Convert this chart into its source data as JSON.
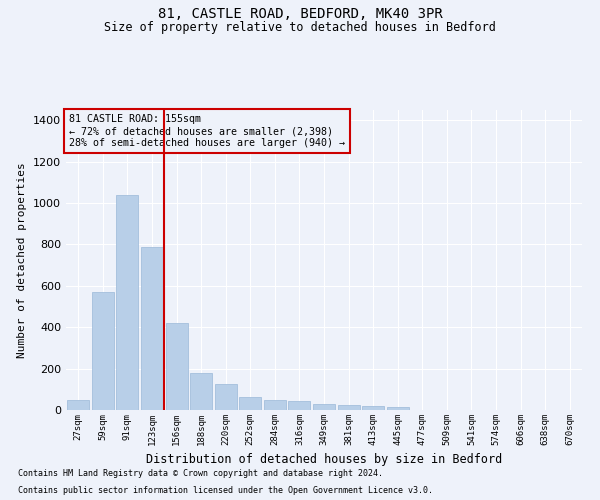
{
  "title_line1": "81, CASTLE ROAD, BEDFORD, MK40 3PR",
  "title_line2": "Size of property relative to detached houses in Bedford",
  "xlabel": "Distribution of detached houses by size in Bedford",
  "ylabel": "Number of detached properties",
  "footnote1": "Contains HM Land Registry data © Crown copyright and database right 2024.",
  "footnote2": "Contains public sector information licensed under the Open Government Licence v3.0.",
  "annotation_line1": "81 CASTLE ROAD: 155sqm",
  "annotation_line2": "← 72% of detached houses are smaller (2,398)",
  "annotation_line3": "28% of semi-detached houses are larger (940) →",
  "bar_color": "#b8cfe8",
  "bar_edge_color": "#9ab8d8",
  "vline_color": "#cc0000",
  "vline_x_index": 4,
  "annotation_box_color": "#cc0000",
  "categories": [
    "27sqm",
    "59sqm",
    "91sqm",
    "123sqm",
    "156sqm",
    "188sqm",
    "220sqm",
    "252sqm",
    "284sqm",
    "316sqm",
    "349sqm",
    "381sqm",
    "413sqm",
    "445sqm",
    "477sqm",
    "509sqm",
    "541sqm",
    "574sqm",
    "606sqm",
    "638sqm",
    "670sqm"
  ],
  "values": [
    47,
    572,
    1040,
    787,
    422,
    178,
    128,
    63,
    47,
    42,
    28,
    25,
    20,
    13,
    0,
    0,
    0,
    0,
    0,
    0,
    0
  ],
  "ylim": [
    0,
    1450
  ],
  "yticks": [
    0,
    200,
    400,
    600,
    800,
    1000,
    1200,
    1400
  ],
  "bg_color": "#eef2fa",
  "grid_color": "#ffffff",
  "figsize": [
    6.0,
    5.0
  ],
  "dpi": 100
}
